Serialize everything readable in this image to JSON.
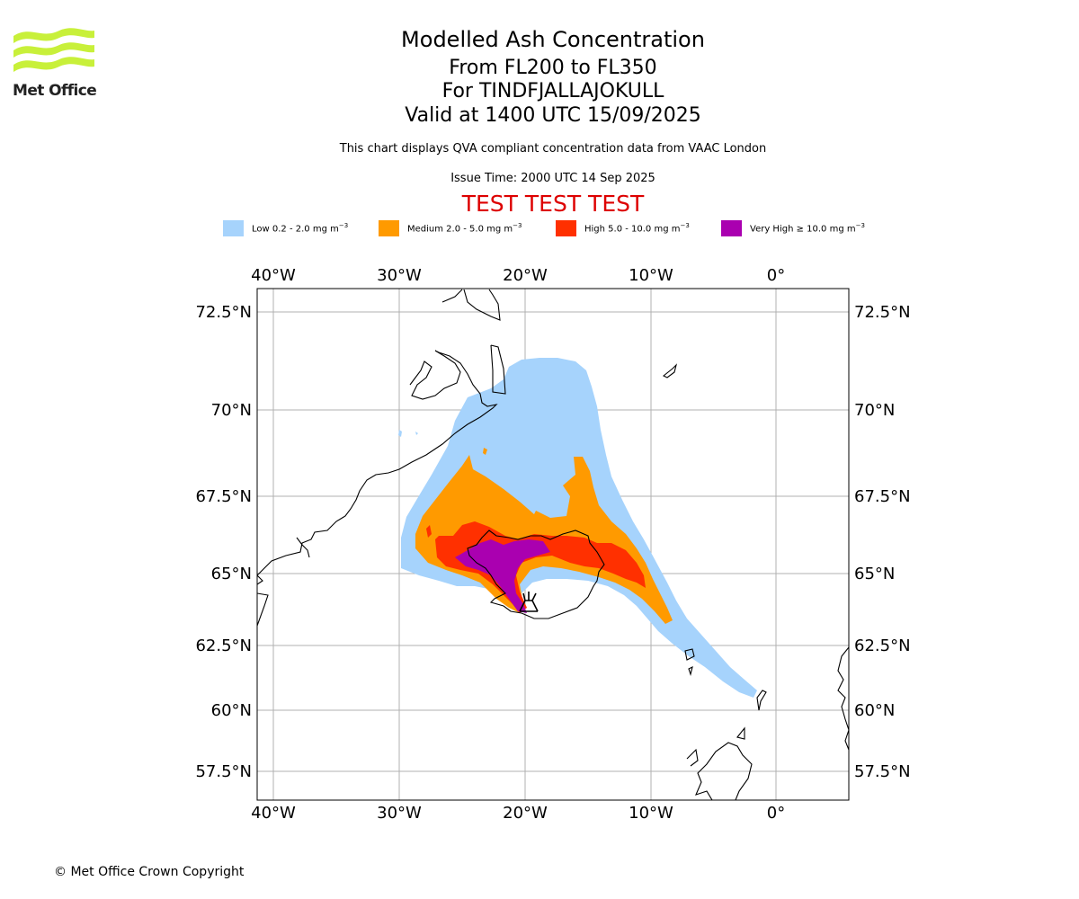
{
  "header": {
    "logo_text": "Met Office",
    "title": "Modelled Ash Concentration",
    "levels": "From FL200 to FL350",
    "volcano": "For TINDFJALLAJOKULL",
    "valid": "Valid at 1400 UTC 15/09/2025",
    "description": "This chart displays QVA compliant concentration data from VAAC London",
    "issue_time": "Issue Time: 2000 UTC 14 Sep 2025",
    "test_label": "TEST TEST TEST"
  },
  "legend": [
    {
      "label": "Low 0.2 - 2.0 mg m",
      "unit_sup": "−3",
      "color": "#a6d3fc"
    },
    {
      "label": "Medium 2.0 - 5.0 mg m",
      "unit_sup": "−3",
      "color": "#ff9a00"
    },
    {
      "label": "High 5.0 - 10.0 mg m",
      "unit_sup": "−3",
      "color": "#ff3000"
    },
    {
      "label": "Very High  ≥  10.0 mg m",
      "unit_sup": "−3",
      "color": "#aa00b0"
    }
  ],
  "map": {
    "lon_ticks": [
      "40°W",
      "30°W",
      "20°W",
      "10°W",
      "0°"
    ],
    "lat_ticks": [
      "72.5°N",
      "70°N",
      "67.5°N",
      "65°N",
      "62.5°N",
      "60°N",
      "57.5°N"
    ],
    "grid": true,
    "volcano_marker_icon": "volcano-icon"
  },
  "footer": {
    "copyright": "© Met Office Crown Copyright"
  }
}
